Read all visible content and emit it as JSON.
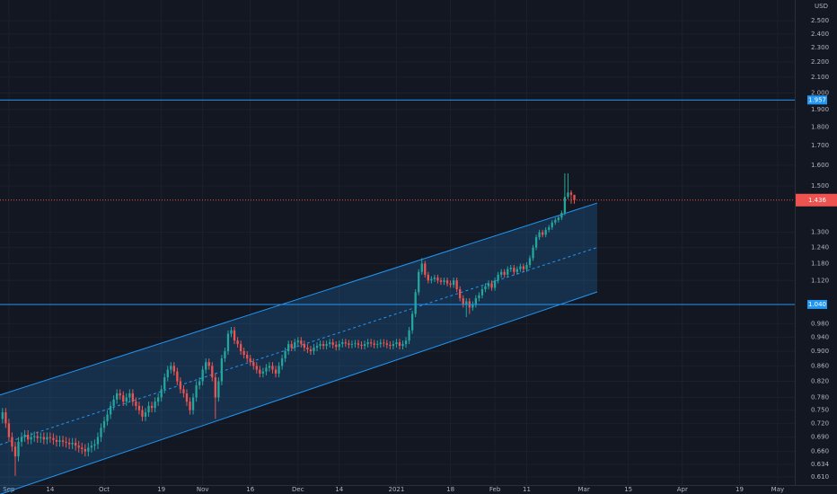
{
  "chart_data": {
    "type": "candlestick",
    "currency": "USD",
    "log_scale": true,
    "grid": true,
    "colors": {
      "background": "#131722",
      "grid": "#1c202b",
      "up": "#26a69a",
      "down": "#ef5350",
      "channel": "#2196f3",
      "level": "#2196f3",
      "text": "#b2b5be"
    },
    "xlim": [
      -2.8,
      247.4
    ],
    "xticks": [
      {
        "value": 0,
        "label": "Sep"
      },
      {
        "value": 13,
        "label": "14"
      },
      {
        "value": 30,
        "label": "Oct"
      },
      {
        "value": 48,
        "label": "19"
      },
      {
        "value": 61,
        "label": "Nov"
      },
      {
        "value": 76,
        "label": "16"
      },
      {
        "value": 91,
        "label": "Dec"
      },
      {
        "value": 104,
        "label": "14"
      },
      {
        "value": 122,
        "label": "2021"
      },
      {
        "value": 139,
        "label": "18"
      },
      {
        "value": 153,
        "label": "Feb"
      },
      {
        "value": 163,
        "label": "11"
      },
      {
        "value": 181,
        "label": "Mar"
      },
      {
        "value": 195,
        "label": "15"
      },
      {
        "value": 212,
        "label": "Apr"
      },
      {
        "value": 230,
        "label": "19"
      },
      {
        "value": 242,
        "label": "May"
      }
    ],
    "ylim": [
      0.595,
      2.666
    ],
    "yticks": [
      {
        "value": 0.61,
        "label": "0.610"
      },
      {
        "value": 0.634,
        "label": "0.634"
      },
      {
        "value": 0.66,
        "label": "0.660"
      },
      {
        "value": 0.69,
        "label": "0.690"
      },
      {
        "value": 0.72,
        "label": "0.720"
      },
      {
        "value": 0.75,
        "label": "0.750"
      },
      {
        "value": 0.78,
        "label": "0.780"
      },
      {
        "value": 0.82,
        "label": "0.820"
      },
      {
        "value": 0.86,
        "label": "0.860"
      },
      {
        "value": 0.9,
        "label": "0.900"
      },
      {
        "value": 0.94,
        "label": "0.940"
      },
      {
        "value": 0.98,
        "label": "0.980"
      },
      {
        "value": 1.12,
        "label": "1.120"
      },
      {
        "value": 1.18,
        "label": "1.180"
      },
      {
        "value": 1.24,
        "label": "1.240"
      },
      {
        "value": 1.3,
        "label": "1.300"
      },
      {
        "value": 1.5,
        "label": "1.500"
      },
      {
        "value": 1.6,
        "label": "1.600"
      },
      {
        "value": 1.7,
        "label": "1.700"
      },
      {
        "value": 1.8,
        "label": "1.800"
      },
      {
        "value": 1.9,
        "label": "1.900"
      },
      {
        "value": 2.0,
        "label": "2.000"
      },
      {
        "value": 2.1,
        "label": "2.100"
      },
      {
        "value": 2.2,
        "label": "2.200"
      },
      {
        "value": 2.3,
        "label": "2.300"
      },
      {
        "value": 2.4,
        "label": "2.400"
      },
      {
        "value": 2.5,
        "label": "2.500"
      }
    ],
    "x": [
      -2,
      -1,
      0,
      1,
      2,
      3,
      4,
      5,
      6,
      7,
      8,
      9,
      10,
      11,
      12,
      13,
      14,
      15,
      16,
      17,
      18,
      19,
      20,
      21,
      22,
      23,
      24,
      25,
      26,
      27,
      28,
      29,
      30,
      31,
      32,
      33,
      34,
      35,
      36,
      37,
      38,
      39,
      40,
      41,
      42,
      43,
      44,
      45,
      46,
      47,
      48,
      49,
      50,
      51,
      52,
      53,
      54,
      55,
      56,
      57,
      58,
      59,
      60,
      61,
      62,
      63,
      64,
      65,
      66,
      67,
      68,
      69,
      70,
      71,
      72,
      73,
      74,
      75,
      76,
      77,
      78,
      79,
      80,
      81,
      82,
      83,
      84,
      85,
      86,
      87,
      88,
      89,
      90,
      91,
      92,
      93,
      94,
      95,
      96,
      97,
      98,
      99,
      100,
      101,
      102,
      103,
      104,
      105,
      106,
      107,
      108,
      109,
      110,
      111,
      112,
      113,
      114,
      115,
      116,
      117,
      118,
      119,
      120,
      121,
      122,
      123,
      124,
      125,
      126,
      127,
      128,
      129,
      130,
      131,
      132,
      133,
      134,
      135,
      136,
      137,
      138,
      139,
      140,
      141,
      142,
      143,
      144,
      145,
      146,
      147,
      148,
      149,
      150,
      151,
      152,
      153,
      154,
      155,
      156,
      157,
      158,
      159,
      160,
      161,
      162,
      163,
      164,
      165,
      166,
      167,
      168,
      169,
      170,
      171,
      172,
      173,
      174,
      175,
      176,
      177,
      178
    ],
    "open": [
      0.73,
      0.745,
      0.72,
      0.69,
      0.67,
      0.65,
      0.68,
      0.69,
      0.695,
      0.685,
      0.69,
      0.692,
      0.688,
      0.69,
      0.685,
      0.69,
      0.688,
      0.684,
      0.68,
      0.683,
      0.68,
      0.678,
      0.675,
      0.678,
      0.672,
      0.668,
      0.665,
      0.66,
      0.668,
      0.672,
      0.675,
      0.69,
      0.71,
      0.725,
      0.74,
      0.76,
      0.775,
      0.79,
      0.785,
      0.77,
      0.78,
      0.79,
      0.77,
      0.76,
      0.75,
      0.735,
      0.745,
      0.76,
      0.755,
      0.77,
      0.78,
      0.8,
      0.83,
      0.85,
      0.86,
      0.845,
      0.82,
      0.8,
      0.79,
      0.77,
      0.75,
      0.78,
      0.81,
      0.82,
      0.85,
      0.87,
      0.86,
      0.83,
      0.78,
      0.82,
      0.88,
      0.9,
      0.95,
      0.96,
      0.93,
      0.92,
      0.9,
      0.89,
      0.88,
      0.87,
      0.86,
      0.85,
      0.84,
      0.845,
      0.855,
      0.86,
      0.85,
      0.84,
      0.86,
      0.88,
      0.9,
      0.92,
      0.91,
      0.925,
      0.93,
      0.92,
      0.91,
      0.905,
      0.9,
      0.91,
      0.915,
      0.92,
      0.915,
      0.92,
      0.925,
      0.918,
      0.912,
      0.92,
      0.925,
      0.922,
      0.918,
      0.92,
      0.922,
      0.918,
      0.915,
      0.92,
      0.925,
      0.922,
      0.918,
      0.92,
      0.924,
      0.922,
      0.918,
      0.915,
      0.92,
      0.925,
      0.915,
      0.92,
      0.93,
      0.96,
      1.01,
      1.08,
      1.15,
      1.18,
      1.14,
      1.12,
      1.125,
      1.13,
      1.12,
      1.115,
      1.12,
      1.11,
      1.105,
      1.12,
      1.09,
      1.06,
      1.04,
      1.05,
      1.03,
      1.04,
      1.06,
      1.07,
      1.09,
      1.1,
      1.11,
      1.095,
      1.12,
      1.14,
      1.15,
      1.14,
      1.16,
      1.165,
      1.15,
      1.16,
      1.17,
      1.16,
      1.175,
      1.2,
      1.24,
      1.28,
      1.3,
      1.29,
      1.31,
      1.32,
      1.34,
      1.35,
      1.36,
      1.38,
      1.45,
      1.47,
      1.46
    ],
    "high": [
      0.755,
      0.755,
      0.73,
      0.7,
      0.68,
      0.69,
      0.7,
      0.705,
      0.705,
      0.7,
      0.702,
      0.702,
      0.7,
      0.7,
      0.7,
      0.7,
      0.698,
      0.694,
      0.693,
      0.693,
      0.69,
      0.688,
      0.688,
      0.688,
      0.682,
      0.678,
      0.675,
      0.678,
      0.682,
      0.685,
      0.7,
      0.72,
      0.735,
      0.75,
      0.77,
      0.785,
      0.8,
      0.8,
      0.795,
      0.79,
      0.8,
      0.8,
      0.78,
      0.77,
      0.76,
      0.755,
      0.77,
      0.77,
      0.78,
      0.79,
      0.81,
      0.84,
      0.86,
      0.87,
      0.87,
      0.855,
      0.83,
      0.81,
      0.8,
      0.78,
      0.79,
      0.82,
      0.83,
      0.86,
      0.88,
      0.88,
      0.87,
      0.84,
      0.83,
      0.89,
      0.91,
      0.96,
      0.97,
      0.97,
      0.94,
      0.93,
      0.91,
      0.9,
      0.89,
      0.88,
      0.87,
      0.86,
      0.855,
      0.865,
      0.87,
      0.87,
      0.86,
      0.87,
      0.89,
      0.91,
      0.93,
      0.93,
      0.935,
      0.94,
      0.94,
      0.93,
      0.92,
      0.915,
      0.92,
      0.925,
      0.93,
      0.93,
      0.93,
      0.935,
      0.935,
      0.928,
      0.93,
      0.935,
      0.935,
      0.932,
      0.93,
      0.932,
      0.932,
      0.928,
      0.93,
      0.935,
      0.935,
      0.932,
      0.93,
      0.934,
      0.934,
      0.932,
      0.928,
      0.93,
      0.935,
      0.935,
      0.93,
      0.94,
      0.97,
      1.02,
      1.09,
      1.16,
      1.2,
      1.19,
      1.15,
      1.135,
      1.14,
      1.14,
      1.13,
      1.13,
      1.13,
      1.12,
      1.13,
      1.13,
      1.1,
      1.07,
      1.06,
      1.06,
      1.05,
      1.07,
      1.08,
      1.1,
      1.11,
      1.12,
      1.12,
      1.13,
      1.15,
      1.16,
      1.16,
      1.17,
      1.175,
      1.175,
      1.17,
      1.18,
      1.18,
      1.185,
      1.21,
      1.25,
      1.29,
      1.31,
      1.31,
      1.32,
      1.33,
      1.35,
      1.36,
      1.37,
      1.39,
      1.56,
      1.56,
      1.48,
      1.45
    ],
    "low": [
      0.72,
      0.71,
      0.68,
      0.66,
      0.612,
      0.64,
      0.67,
      0.68,
      0.675,
      0.675,
      0.68,
      0.678,
      0.678,
      0.675,
      0.675,
      0.678,
      0.674,
      0.67,
      0.67,
      0.67,
      0.668,
      0.665,
      0.665,
      0.662,
      0.658,
      0.655,
      0.65,
      0.65,
      0.658,
      0.662,
      0.665,
      0.68,
      0.7,
      0.715,
      0.73,
      0.75,
      0.765,
      0.775,
      0.76,
      0.76,
      0.77,
      0.76,
      0.75,
      0.74,
      0.725,
      0.725,
      0.735,
      0.745,
      0.745,
      0.76,
      0.77,
      0.79,
      0.82,
      0.84,
      0.835,
      0.81,
      0.79,
      0.78,
      0.76,
      0.74,
      0.74,
      0.77,
      0.8,
      0.81,
      0.84,
      0.85,
      0.82,
      0.73,
      0.77,
      0.81,
      0.87,
      0.89,
      0.94,
      0.92,
      0.91,
      0.89,
      0.88,
      0.87,
      0.86,
      0.85,
      0.84,
      0.83,
      0.83,
      0.835,
      0.845,
      0.84,
      0.83,
      0.83,
      0.85,
      0.87,
      0.89,
      0.9,
      0.9,
      0.915,
      0.91,
      0.9,
      0.895,
      0.89,
      0.89,
      0.9,
      0.905,
      0.905,
      0.905,
      0.91,
      0.908,
      0.902,
      0.902,
      0.91,
      0.912,
      0.908,
      0.908,
      0.91,
      0.908,
      0.905,
      0.905,
      0.91,
      0.912,
      0.908,
      0.908,
      0.91,
      0.912,
      0.908,
      0.905,
      0.905,
      0.91,
      0.905,
      0.905,
      0.91,
      0.92,
      0.95,
      1.0,
      1.07,
      1.14,
      1.13,
      1.11,
      1.11,
      1.115,
      1.11,
      1.105,
      1.105,
      1.1,
      1.095,
      1.095,
      1.08,
      1.05,
      1.03,
      1.0,
      1.01,
      1.02,
      1.03,
      1.05,
      1.06,
      1.08,
      1.09,
      1.085,
      1.085,
      1.11,
      1.13,
      1.13,
      1.13,
      1.15,
      1.14,
      1.14,
      1.15,
      1.15,
      1.15,
      1.165,
      1.19,
      1.23,
      1.27,
      1.28,
      1.28,
      1.3,
      1.31,
      1.33,
      1.34,
      1.35,
      1.37,
      1.44,
      1.42,
      1.42
    ],
    "close": [
      0.745,
      0.72,
      0.69,
      0.67,
      0.65,
      0.68,
      0.69,
      0.695,
      0.685,
      0.69,
      0.692,
      0.688,
      0.69,
      0.685,
      0.69,
      0.688,
      0.684,
      0.68,
      0.683,
      0.68,
      0.678,
      0.675,
      0.678,
      0.672,
      0.668,
      0.665,
      0.66,
      0.668,
      0.672,
      0.675,
      0.69,
      0.71,
      0.725,
      0.74,
      0.76,
      0.775,
      0.79,
      0.785,
      0.77,
      0.78,
      0.79,
      0.77,
      0.76,
      0.75,
      0.735,
      0.745,
      0.76,
      0.755,
      0.77,
      0.78,
      0.8,
      0.83,
      0.85,
      0.86,
      0.845,
      0.82,
      0.8,
      0.79,
      0.77,
      0.75,
      0.78,
      0.81,
      0.82,
      0.85,
      0.87,
      0.86,
      0.83,
      0.78,
      0.82,
      0.88,
      0.9,
      0.95,
      0.96,
      0.93,
      0.92,
      0.9,
      0.89,
      0.88,
      0.87,
      0.86,
      0.85,
      0.84,
      0.845,
      0.855,
      0.86,
      0.85,
      0.84,
      0.86,
      0.88,
      0.9,
      0.92,
      0.91,
      0.925,
      0.93,
      0.92,
      0.91,
      0.905,
      0.9,
      0.91,
      0.915,
      0.92,
      0.915,
      0.92,
      0.925,
      0.918,
      0.912,
      0.92,
      0.925,
      0.922,
      0.918,
      0.92,
      0.922,
      0.918,
      0.915,
      0.92,
      0.925,
      0.922,
      0.918,
      0.92,
      0.924,
      0.922,
      0.918,
      0.915,
      0.92,
      0.925,
      0.915,
      0.92,
      0.93,
      0.96,
      1.01,
      1.08,
      1.15,
      1.18,
      1.14,
      1.12,
      1.125,
      1.13,
      1.12,
      1.115,
      1.12,
      1.11,
      1.105,
      1.12,
      1.09,
      1.06,
      1.04,
      1.05,
      1.03,
      1.04,
      1.06,
      1.07,
      1.09,
      1.1,
      1.11,
      1.095,
      1.12,
      1.14,
      1.15,
      1.14,
      1.16,
      1.165,
      1.15,
      1.16,
      1.17,
      1.16,
      1.175,
      1.2,
      1.24,
      1.28,
      1.3,
      1.29,
      1.31,
      1.32,
      1.34,
      1.35,
      1.36,
      1.38,
      1.45,
      1.47,
      1.46,
      1.436
    ],
    "last_price_label": "1.436",
    "levels": [
      {
        "value": 1.957,
        "label": "1.957"
      },
      {
        "value": 1.04,
        "label": "1.040"
      }
    ],
    "channel": {
      "x": [
        -2.8,
        185.2
      ],
      "upper": [
        0.786,
        1.423
      ],
      "lower": [
        0.578,
        1.081
      ]
    }
  }
}
